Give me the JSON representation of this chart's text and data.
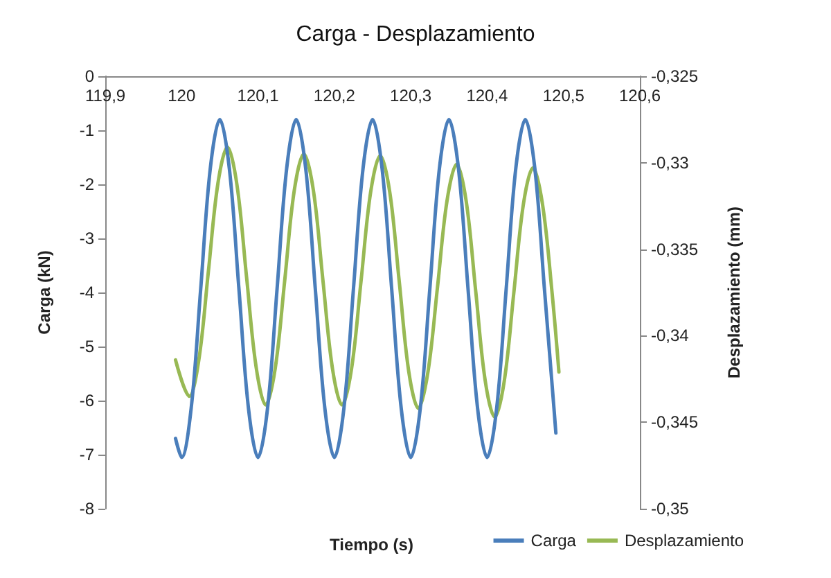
{
  "chart_data": {
    "type": "line",
    "title": "Carga - Desplazamiento",
    "xlabel": "Tiempo (s)",
    "ylabel": "Carga (kN)",
    "y2label": "Desplazamiento (mm)",
    "xlim": [
      119.9,
      120.6
    ],
    "xticks": [
      {
        "value": 119.9,
        "label": "119,9"
      },
      120,
      {
        "value": 120.1,
        "label": "120,1"
      },
      {
        "value": 120.2,
        "label": "120,2"
      },
      {
        "value": 120.3,
        "label": "120,3"
      },
      {
        "value": 120.4,
        "label": "120,4"
      },
      {
        "value": 120.5,
        "label": "120,5"
      },
      {
        "value": 120.6,
        "label": "120,6"
      }
    ],
    "ylim": [
      -8,
      0
    ],
    "yticks": [
      -8,
      -7,
      -6,
      -5,
      -4,
      -3,
      -2,
      -1,
      0
    ],
    "y2lim": [
      -0.35,
      -0.325
    ],
    "y2ticks": [
      {
        "value": -0.35,
        "label": "-0,35"
      },
      {
        "value": -0.345,
        "label": "-0,345"
      },
      {
        "value": -0.34,
        "label": "-0,34"
      },
      {
        "value": -0.335,
        "label": "-0,335"
      },
      {
        "value": -0.33,
        "label": "-0,33"
      },
      {
        "value": -0.325,
        "label": "-0,325"
      }
    ],
    "grid": false,
    "legend": "bottom right",
    "marker": "none",
    "line_style": "solid",
    "series": [
      {
        "name": "Carga",
        "color": "#4a7ebb",
        "x": [
          119.992,
          120.0,
          120.0125,
          120.025,
          120.0375,
          120.05,
          120.0625,
          120.075,
          120.0875,
          120.1,
          120.1125,
          120.125,
          120.1375,
          120.15,
          120.1625,
          120.175,
          120.1875,
          120.2,
          120.2125,
          120.225,
          120.2375,
          120.25,
          120.2625,
          120.275,
          120.2875,
          120.3,
          120.3125,
          120.325,
          120.3375,
          120.35,
          120.3625,
          120.375,
          120.3875,
          120.4,
          120.4125,
          120.425,
          120.4375,
          120.45,
          120.4625,
          120.475,
          120.4875,
          120.49
        ],
        "values": [
          -6.7,
          -7.05,
          -6.14,
          -3.93,
          -1.71,
          -0.8,
          -1.71,
          -3.93,
          -6.14,
          -7.05,
          -6.14,
          -3.93,
          -1.71,
          -0.8,
          -1.71,
          -3.93,
          -6.14,
          -7.05,
          -6.14,
          -3.93,
          -1.71,
          -0.8,
          -1.71,
          -3.93,
          -6.14,
          -7.05,
          -6.14,
          -3.93,
          -1.71,
          -0.8,
          -1.71,
          -3.93,
          -6.14,
          -7.05,
          -6.14,
          -3.93,
          -1.71,
          -0.8,
          -1.71,
          -3.93,
          -6.14,
          -6.6
        ]
      },
      {
        "name": "Desplazamiento",
        "color": "#98b954",
        "axis": "y2",
        "x": [
          119.992,
          120.01,
          120.0225,
          120.035,
          120.0475,
          120.06,
          120.0725,
          120.085,
          120.0975,
          120.11,
          120.1225,
          120.135,
          120.1475,
          120.16,
          120.1725,
          120.185,
          120.1975,
          120.21,
          120.2225,
          120.235,
          120.2475,
          120.26,
          120.2725,
          120.285,
          120.2975,
          120.31,
          120.3225,
          120.335,
          120.3475,
          120.36,
          120.3725,
          120.385,
          120.3975,
          120.41,
          120.4225,
          120.435,
          120.4475,
          120.46,
          120.4725,
          120.485,
          120.494
        ],
        "values": [
          -0.3414,
          -0.3435,
          -0.3414,
          -0.3363,
          -0.3312,
          -0.3291,
          -0.3313,
          -0.3366,
          -0.3418,
          -0.344,
          -0.3419,
          -0.3368,
          -0.3316,
          -0.3295,
          -0.3316,
          -0.3368,
          -0.3419,
          -0.344,
          -0.3419,
          -0.3368,
          -0.3317,
          -0.3296,
          -0.3317,
          -0.3369,
          -0.3421,
          -0.3442,
          -0.3421,
          -0.3372,
          -0.3322,
          -0.3301,
          -0.3322,
          -0.3374,
          -0.3426,
          -0.3447,
          -0.3426,
          -0.3375,
          -0.3324,
          -0.3303,
          -0.3324,
          -0.3375,
          -0.3421
        ]
      }
    ]
  }
}
